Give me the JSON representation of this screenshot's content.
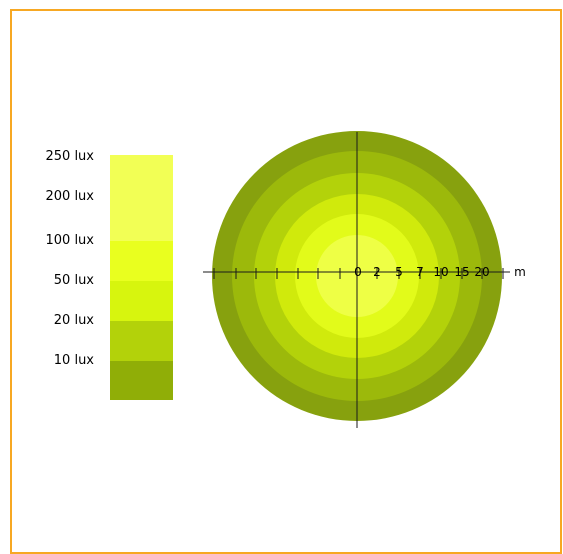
{
  "legend": {
    "items": [
      {
        "label": "250 lux",
        "color": "#f2ff55"
      },
      {
        "label": "200 lux",
        "color": "#f2ff55"
      },
      {
        "label": "100 lux",
        "color": "#e9ff1f"
      },
      {
        "label": "50 lux",
        "color": "#d7f50e"
      },
      {
        "label": "20 lux",
        "color": "#b3d20a"
      },
      {
        "label": "10 lux",
        "color": "#90ae07"
      }
    ],
    "swatch_colors": [
      "#f2ff55",
      "#e9ff1f",
      "#d7f50e",
      "#b3d20a",
      "#90ae07"
    ]
  },
  "rings": [
    {
      "color": "#87a10e"
    },
    {
      "color": "#9cb90b"
    },
    {
      "color": "#b3d20a"
    },
    {
      "color": "#d0ea0c"
    },
    {
      "color": "#e2fb1a"
    },
    {
      "color": "#eeff45"
    }
  ],
  "axis": {
    "tick_labels": [
      "0",
      "2",
      "5",
      "7",
      "10",
      "15",
      "20"
    ],
    "unit": "m"
  },
  "colors": {
    "frame_border": "#f7a823",
    "axis_line": "#1a1a1a"
  }
}
